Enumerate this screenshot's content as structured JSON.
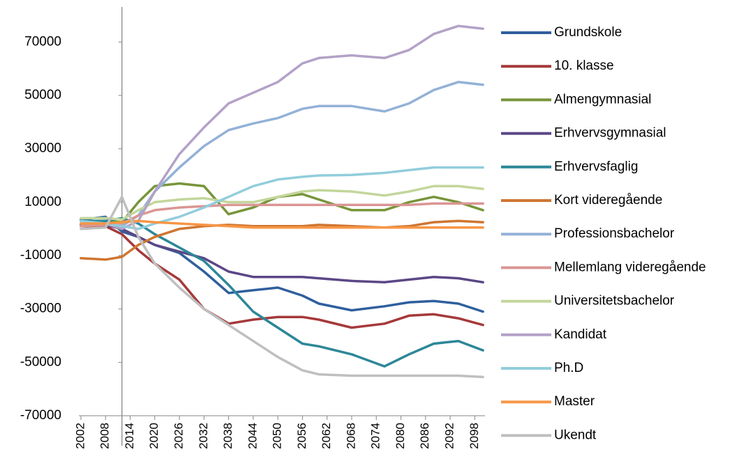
{
  "chart_data": {
    "type": "line",
    "x": [
      2002,
      2008,
      2012,
      2016,
      2020,
      2026,
      2032,
      2038,
      2044,
      2050,
      2056,
      2060,
      2068,
      2076,
      2082,
      2088,
      2094,
      2100
    ],
    "xlim": [
      2001.5,
      2100.5
    ],
    "xticks": [
      2002,
      2008,
      2014,
      2020,
      2026,
      2032,
      2038,
      2044,
      2050,
      2056,
      2062,
      2068,
      2074,
      2080,
      2086,
      2092,
      2098
    ],
    "ylim": [
      -70000,
      80000
    ],
    "yticks": [
      -70000,
      -50000,
      -30000,
      -10000,
      10000,
      30000,
      50000,
      70000
    ],
    "yaxis_crosses_x": 2012,
    "legend": "right",
    "series": [
      {
        "name": "Grundskole",
        "color": "#2f5f9e",
        "values": [
          3500,
          4500,
          -1000,
          -3000,
          -6000,
          -9000,
          -16000,
          -24000,
          -23000,
          -22000,
          -25000,
          -28000,
          -30500,
          -29000,
          -27500,
          -27000,
          -28000,
          -31000
        ]
      },
      {
        "name": "10. klasse",
        "color": "#a5393a",
        "values": [
          1000,
          1000,
          -2000,
          -8000,
          -13000,
          -19000,
          -30000,
          -35500,
          -34000,
          -33000,
          -33000,
          -34000,
          -37000,
          -35500,
          -32500,
          -32000,
          -33500,
          -36000
        ]
      },
      {
        "name": "Almengymnasial",
        "color": "#77953a",
        "values": [
          3000,
          3000,
          2500,
          10000,
          16000,
          17000,
          16000,
          5500,
          8000,
          12000,
          13000,
          11000,
          7000,
          7000,
          10000,
          12000,
          10000,
          7000
        ]
      },
      {
        "name": "Erhvervsgymnasial",
        "color": "#5b4786",
        "values": [
          1500,
          1500,
          0,
          -3000,
          -6000,
          -8500,
          -11000,
          -16000,
          -18000,
          -18000,
          -18000,
          -18500,
          -19500,
          -20000,
          -19000,
          -18000,
          -18500,
          -20000
        ]
      },
      {
        "name": "Erhvervsfaglig",
        "color": "#2c8798",
        "values": [
          3000,
          3000,
          4000,
          2000,
          -2000,
          -7000,
          -12000,
          -21000,
          -31000,
          -37000,
          -43000,
          -44000,
          -47000,
          -51500,
          -47000,
          -43000,
          -42000,
          -45500
        ]
      },
      {
        "name": "Kort videregående",
        "color": "#cf7631",
        "values": [
          -11000,
          -11500,
          -10500,
          -6000,
          -3000,
          0,
          1000,
          1500,
          1000,
          1000,
          1000,
          1500,
          1000,
          500,
          1000,
          2500,
          3000,
          2500
        ]
      },
      {
        "name": "Professionsbachelor",
        "color": "#93b1d7",
        "values": [
          2000,
          2000,
          1000,
          5000,
          14000,
          23000,
          31000,
          37000,
          39500,
          41500,
          45000,
          46000,
          46000,
          44000,
          47000,
          52000,
          55000,
          54000
        ]
      },
      {
        "name": "Mellemlang videregående",
        "color": "#da9694",
        "values": [
          1000,
          1500,
          2000,
          5000,
          7000,
          8000,
          8500,
          9000,
          9000,
          9000,
          9000,
          9000,
          9000,
          9000,
          9000,
          9500,
          9500,
          9500
        ]
      },
      {
        "name": "Universitetsbachelor",
        "color": "#c3d69b",
        "values": [
          4000,
          4000,
          3500,
          7000,
          10000,
          11000,
          11500,
          10000,
          10000,
          12000,
          14000,
          14500,
          14000,
          12500,
          14000,
          16000,
          16000,
          15000
        ]
      },
      {
        "name": "Kandidat",
        "color": "#b3a2c7",
        "values": [
          2000,
          2000,
          0,
          3000,
          14000,
          28000,
          38000,
          47000,
          51000,
          55000,
          62000,
          64000,
          65000,
          64000,
          67000,
          73000,
          76000,
          75000
        ]
      },
      {
        "name": "Ph.D",
        "color": "#92cddc",
        "values": [
          3000,
          2000,
          1000,
          0,
          2000,
          4500,
          8000,
          12000,
          16000,
          18500,
          19500,
          20000,
          20200,
          21000,
          22000,
          23000,
          23000,
          23000
        ]
      },
      {
        "name": "Master",
        "color": "#f79646",
        "values": [
          2000,
          2000,
          2500,
          3000,
          2500,
          2000,
          1500,
          1000,
          500,
          500,
          500,
          500,
          500,
          500,
          500,
          500,
          500,
          500
        ]
      },
      {
        "name": "Ukendt",
        "color": "#bfbfbf",
        "values": [
          0,
          500,
          12000,
          -3000,
          -13000,
          -22000,
          -30000,
          -36000,
          -42000,
          -48000,
          -53000,
          -54500,
          -55000,
          -55000,
          -55000,
          -55000,
          -55000,
          -55500
        ]
      }
    ]
  }
}
